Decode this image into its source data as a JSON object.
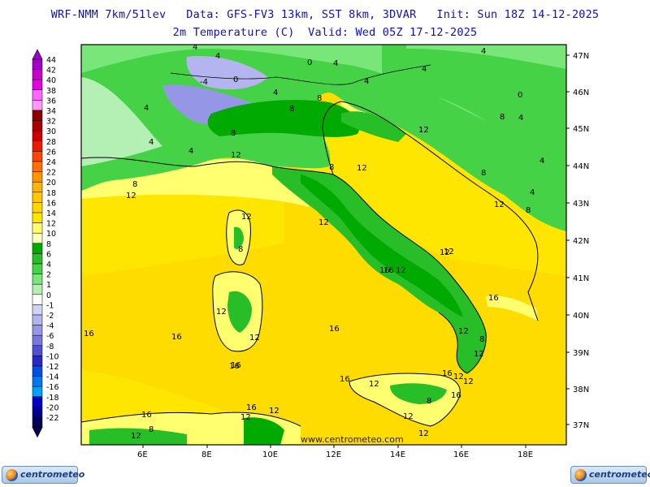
{
  "header": {
    "line1": "WRF-NMM 7km/51lev   Data: GFS-FV3 13km, SST 8km, 3DVAR   Init: Sun 18Z 14-12-2025",
    "line2": "2m Temperature (C)  Valid: Wed 05Z 17-12-2025"
  },
  "map": {
    "lon_labels": [
      "6E",
      "8E",
      "10E",
      "12E",
      "14E",
      "16E",
      "18E"
    ],
    "lat_labels": [
      "47N",
      "46N",
      "45N",
      "44N",
      "43N",
      "42N",
      "41N",
      "40N",
      "39N",
      "38N",
      "37N"
    ],
    "watermark": "www.centrometeo.com",
    "contour_labels": [
      "4",
      "-4",
      "0",
      "4",
      "0",
      "4",
      "4",
      "4",
      "4",
      "4",
      "4",
      "8",
      "8",
      "8",
      "4",
      "0",
      "4",
      "4",
      "8",
      "4",
      "8",
      "4",
      "12",
      "12",
      "12",
      "12",
      "12",
      "12",
      "8",
      "12",
      "12",
      "8",
      "8",
      "12",
      "16",
      "12",
      "8",
      "12",
      "12",
      "12",
      "16",
      "16",
      "16",
      "16",
      "12",
      "12",
      "12",
      "16",
      "16",
      "16",
      "12",
      "12",
      "16",
      "8",
      "16",
      "12",
      "16",
      "16",
      "16",
      "12",
      "12",
      "8",
      "12",
      "8"
    ]
  },
  "colorbar": {
    "labels": [
      "44",
      "42",
      "40",
      "38",
      "36",
      "34",
      "32",
      "30",
      "28",
      "26",
      "24",
      "22",
      "20",
      "18",
      "16",
      "14",
      "12",
      "10",
      "8",
      "6",
      "4",
      "2",
      "1",
      "0",
      "-1",
      "-2",
      "-4",
      "-6",
      "-8",
      "-10",
      "-12",
      "-14",
      "-16",
      "-18",
      "-20",
      "-22"
    ],
    "colors": [
      "#a000c8",
      "#c800c8",
      "#e600e6",
      "#ff66ff",
      "#ff99ff",
      "#8c0000",
      "#aa0000",
      "#cc0000",
      "#ee1a00",
      "#ff4400",
      "#ff7000",
      "#ff9600",
      "#ffb400",
      "#ffc800",
      "#ffd800",
      "#ffe600",
      "#ffff70",
      "#ffffc0",
      "#00aa00",
      "#28be28",
      "#46d246",
      "#78e678",
      "#b4f0b4",
      "#ffffff",
      "#d2d2f5",
      "#b4b4f0",
      "#9696e6",
      "#7878dc",
      "#5050d2",
      "#2828c8",
      "#0050e6",
      "#0078f0",
      "#00a0ff",
      "#0000c8",
      "#00008c",
      "#00005a"
    ]
  },
  "logos": {
    "left": "centrometeo",
    "right": "centrometeo"
  }
}
